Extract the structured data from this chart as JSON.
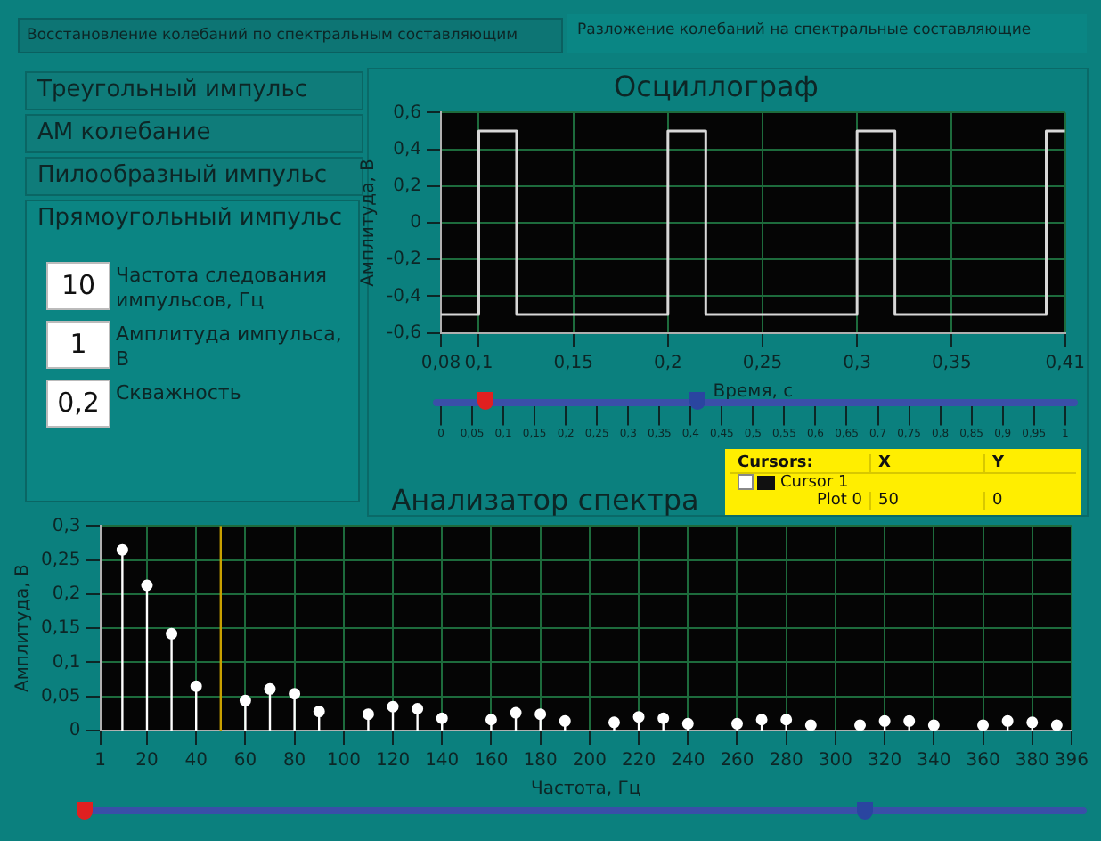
{
  "chart_data": [
    {
      "type": "other",
      "annotations": [
        "Восстановление колебаний по спектральным составляющим",
        "Разложение колебаний на спектральные составляющие",
        "Треугольный  импульс",
        "АМ  колебание",
        "Пилообразный  импульс",
        "Прямоугольный  импульс",
        "10",
        "Частота следования импульсов, Гц",
        "1",
        "Амплитуда импульса, В",
        "0,2",
        "Скважность"
      ]
    },
    {
      "type": "step",
      "title": "Осциллограф",
      "xlabel": "Время, с",
      "ylabel": "Амплитуда, В",
      "color": "#d8d8d8",
      "x": [
        0.08,
        0.1,
        0.12,
        0.2,
        0.22,
        0.3,
        0.32,
        0.4,
        0.41
      ],
      "values": [
        -0.5,
        0.5,
        -0.5,
        0.5,
        -0.5,
        0.5,
        -0.5,
        0.5,
        0.5
      ],
      "xlim": [
        0.08,
        0.41
      ],
      "xticks": [
        {
          "value": 0.08,
          "label": "0,08"
        },
        {
          "value": 0.1,
          "label": "0,1"
        },
        {
          "value": 0.15,
          "label": "0,15"
        },
        {
          "value": 0.2,
          "label": "0,2"
        },
        {
          "value": 0.25,
          "label": "0,25"
        },
        {
          "value": 0.3,
          "label": "0,3"
        },
        {
          "value": 0.35,
          "label": "0,35"
        },
        {
          "value": 0.41,
          "label": "0,41"
        }
      ],
      "ylim": [
        -0.6,
        0.6
      ],
      "yticks": [
        {
          "value": -0.6,
          "label": "-0,6"
        },
        {
          "value": -0.4,
          "label": "-0,4"
        },
        {
          "value": -0.2,
          "label": "-0,2"
        },
        0,
        {
          "value": 0.2,
          "label": "0,2"
        },
        {
          "value": 0.4,
          "label": "0,4"
        },
        {
          "value": 0.6,
          "label": "0,6"
        }
      ],
      "grid": true,
      "x2lim": [
        0,
        1
      ],
      "x2ticks": [
        0,
        {
          "value": 0.05,
          "label": "0,05"
        },
        {
          "value": 0.1,
          "label": "0,1"
        },
        {
          "value": 0.15,
          "label": "0,15"
        },
        {
          "value": 0.2,
          "label": "0,2"
        },
        {
          "value": 0.25,
          "label": "0,25"
        },
        {
          "value": 0.3,
          "label": "0,3"
        },
        {
          "value": 0.35,
          "label": "0,35"
        },
        {
          "value": 0.4,
          "label": "0,4"
        },
        {
          "value": 0.45,
          "label": "0,45"
        },
        {
          "value": 0.5,
          "label": "0,5"
        },
        {
          "value": 0.55,
          "label": "0,55"
        },
        {
          "value": 0.6,
          "label": "0,6"
        },
        {
          "value": 0.65,
          "label": "0,65"
        },
        {
          "value": 0.7,
          "label": "0,7"
        },
        {
          "value": 0.75,
          "label": "0,75"
        },
        {
          "value": 0.8,
          "label": "0,8"
        },
        {
          "value": 0.85,
          "label": "0,85"
        },
        {
          "value": 0.9,
          "label": "0,9"
        },
        {
          "value": 0.95,
          "label": "0,95"
        },
        1
      ]
    },
    {
      "type": "lollipop",
      "title": "Анализатор спектра",
      "xlabel": "Частота, Гц",
      "ylabel": "Амплитуда, В",
      "color": "#ffffff",
      "marker": "circle",
      "x": [
        10,
        20,
        30,
        40,
        60,
        70,
        80,
        90,
        110,
        120,
        130,
        140,
        160,
        170,
        180,
        190,
        210,
        220,
        230,
        240,
        260,
        270,
        280,
        290,
        310,
        320,
        330,
        340,
        360,
        370,
        380,
        390
      ],
      "values": [
        0.265,
        0.213,
        0.142,
        0.065,
        0.044,
        0.061,
        0.054,
        0.028,
        0.024,
        0.035,
        0.032,
        0.018,
        0.016,
        0.026,
        0.024,
        0.014,
        0.012,
        0.02,
        0.018,
        0.01,
        0.01,
        0.016,
        0.016,
        0.008,
        0.008,
        0.014,
        0.014,
        0.008,
        0.008,
        0.014,
        0.012,
        0.008
      ],
      "xlim": [
        1,
        396
      ],
      "xticks": [
        1,
        20,
        40,
        60,
        80,
        100,
        120,
        140,
        160,
        180,
        200,
        220,
        240,
        260,
        280,
        300,
        320,
        340,
        360,
        380,
        396
      ],
      "ylim": [
        0,
        0.3
      ],
      "yticks": [
        0,
        {
          "value": 0.05,
          "label": "0,05"
        },
        {
          "value": 0.1,
          "label": "0,1"
        },
        {
          "value": 0.15,
          "label": "0,15"
        },
        {
          "value": 0.2,
          "label": "0,2"
        },
        {
          "value": 0.25,
          "label": "0,25"
        },
        {
          "value": 0.3,
          "label": "0,3"
        }
      ],
      "grid": true,
      "ref_lines": [
        {
          "axis": "x",
          "value": 50,
          "color": "#c8a000"
        }
      ],
      "annotations": [
        "Cursors:",
        "X",
        "Y",
        "Cursor 1",
        "Plot 0",
        "50",
        "0"
      ]
    }
  ]
}
